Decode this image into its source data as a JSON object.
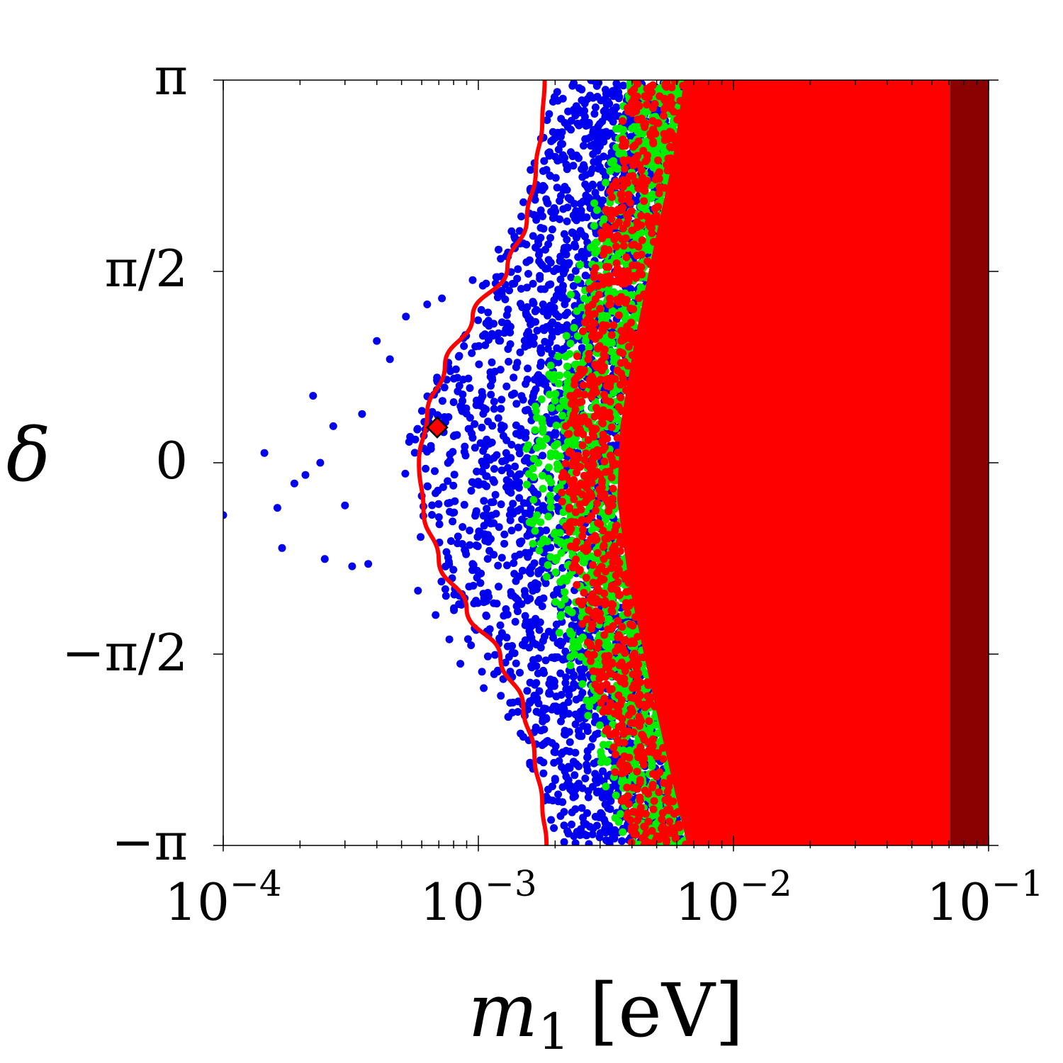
{
  "chart_data": {
    "type": "scatter",
    "x_scale": "log",
    "xlim": [
      0.0001,
      0.1
    ],
    "ylim": [
      -3.14159,
      3.14159
    ],
    "xlabel": {
      "symbol": "m",
      "subscript": "1",
      "unit": "[eV]"
    },
    "ylabel": "δ",
    "x_ticks": [
      {
        "value": 0.0001,
        "base": "10",
        "exponent": "−4"
      },
      {
        "value": 0.001,
        "base": "10",
        "exponent": "−3"
      },
      {
        "value": 0.01,
        "base": "10",
        "exponent": "−2"
      },
      {
        "value": 0.1,
        "base": "10",
        "exponent": "−1"
      }
    ],
    "y_ticks": [
      {
        "value": 3.14159,
        "label": "π"
      },
      {
        "value": 1.5708,
        "label": "π/2"
      },
      {
        "value": 0,
        "label": "0"
      },
      {
        "value": -1.5708,
        "label": "−π/2"
      },
      {
        "value": -3.14159,
        "label": "−π"
      }
    ],
    "colors": {
      "blue_points": "#0000ee",
      "green_points": "#00ee00",
      "red_region": "#ff0000",
      "dark_red_band": "#8b0000",
      "curve": "#ff0000",
      "marker": "#ff0000"
    },
    "dark_red_band": {
      "x_from": 0.071,
      "x_to": 0.1
    },
    "red_region_edge": [
      {
        "delta": 3.14159,
        "m1": 0.0064
      },
      {
        "delta": 2.5,
        "m1": 0.0058
      },
      {
        "delta": 1.8,
        "m1": 0.0049
      },
      {
        "delta": 1.0,
        "m1": 0.0041
      },
      {
        "delta": 0.3,
        "m1": 0.0036
      },
      {
        "delta": -0.3,
        "m1": 0.0035
      },
      {
        "delta": -1.0,
        "m1": 0.0039
      },
      {
        "delta": -1.8,
        "m1": 0.0047
      },
      {
        "delta": -2.5,
        "m1": 0.0056
      },
      {
        "delta": -3.14159,
        "m1": 0.0066
      }
    ],
    "green_band_edge": [
      {
        "delta": 3.14159,
        "m1": 0.0043
      },
      {
        "delta": 2.5,
        "m1": 0.0038
      },
      {
        "delta": 1.8,
        "m1": 0.0031
      },
      {
        "delta": 1.0,
        "m1": 0.0024
      },
      {
        "delta": 0.3,
        "m1": 0.0018
      },
      {
        "delta": -0.3,
        "m1": 0.0017
      },
      {
        "delta": -1.0,
        "m1": 0.0021
      },
      {
        "delta": -1.8,
        "m1": 0.0028
      },
      {
        "delta": -2.5,
        "m1": 0.0036
      },
      {
        "delta": -3.14159,
        "m1": 0.0043
      }
    ],
    "blue_band_edge": [
      {
        "delta": 3.14159,
        "m1": 0.0027
      },
      {
        "delta": 2.5,
        "m1": 0.0021
      },
      {
        "delta": 1.8,
        "m1": 0.0016
      },
      {
        "delta": 1.0,
        "m1": 0.0011
      },
      {
        "delta": 0.3,
        "m1": 0.00068
      },
      {
        "delta": -0.3,
        "m1": 0.00066
      },
      {
        "delta": -1.0,
        "m1": 0.0009
      },
      {
        "delta": -1.8,
        "m1": 0.0014
      },
      {
        "delta": -2.5,
        "m1": 0.0021
      },
      {
        "delta": -3.14159,
        "m1": 0.0027
      }
    ],
    "outlier_points": [
      {
        "m1": 0.0001,
        "delta": -0.43
      },
      {
        "m1": 0.000145,
        "delta": 0.08
      },
      {
        "m1": 0.000163,
        "delta": -0.37
      },
      {
        "m1": 0.00017,
        "delta": -0.7
      },
      {
        "m1": 0.00019,
        "delta": -0.17
      },
      {
        "m1": 0.00021,
        "delta": -0.1
      },
      {
        "m1": 0.000225,
        "delta": 0.55
      },
      {
        "m1": 0.00024,
        "delta": 0.0
      },
      {
        "m1": 0.00025,
        "delta": -0.79
      },
      {
        "m1": 0.00027,
        "delta": 0.3
      },
      {
        "m1": 0.0003,
        "delta": -0.35
      },
      {
        "m1": 0.00032,
        "delta": -0.85
      },
      {
        "m1": 0.00035,
        "delta": 0.4
      },
      {
        "m1": 0.00037,
        "delta": -0.83
      },
      {
        "m1": 0.0004,
        "delta": 1.0
      },
      {
        "m1": 0.00045,
        "delta": 0.85
      },
      {
        "m1": 0.00052,
        "delta": 1.2
      },
      {
        "m1": 0.00058,
        "delta": -1.05
      },
      {
        "m1": 0.00063,
        "delta": 1.3
      },
      {
        "m1": 0.00068,
        "delta": -1.25
      },
      {
        "m1": 0.00072,
        "delta": 1.35
      },
      {
        "m1": 0.00077,
        "delta": -1.45
      },
      {
        "m1": 0.00085,
        "delta": -1.65
      },
      {
        "m1": 0.00095,
        "delta": 1.5
      },
      {
        "m1": 0.00105,
        "delta": -1.85
      },
      {
        "m1": 0.0012,
        "delta": 1.75
      },
      {
        "m1": 0.00135,
        "delta": 1.9
      },
      {
        "m1": 0.0015,
        "delta": -2.25
      },
      {
        "m1": 0.0016,
        "delta": 2.25
      },
      {
        "m1": 0.0018,
        "delta": -2.55
      },
      {
        "m1": 0.0019,
        "delta": 2.55
      },
      {
        "m1": 0.0021,
        "delta": -2.9
      },
      {
        "m1": 0.0024,
        "delta": 2.85
      },
      {
        "m1": 0.0026,
        "delta": -3.05
      }
    ],
    "curve": [
      {
        "delta": 3.14159,
        "m1": 0.00182
      },
      {
        "delta": 2.8,
        "m1": 0.00178
      },
      {
        "delta": 2.4,
        "m1": 0.00168
      },
      {
        "delta": 2.0,
        "m1": 0.00155
      },
      {
        "delta": 1.6,
        "m1": 0.0013
      },
      {
        "delta": 1.2,
        "m1": 0.00095
      },
      {
        "delta": 0.8,
        "m1": 0.00074
      },
      {
        "delta": 0.4,
        "m1": 0.00063
      },
      {
        "delta": 0.0,
        "m1": 0.000585
      },
      {
        "delta": -0.4,
        "m1": 0.00061
      },
      {
        "delta": -0.8,
        "m1": 0.0007
      },
      {
        "delta": -1.2,
        "m1": 0.0009
      },
      {
        "delta": -1.6,
        "m1": 0.00122
      },
      {
        "delta": -2.0,
        "m1": 0.0015
      },
      {
        "delta": -2.4,
        "m1": 0.00166
      },
      {
        "delta": -2.8,
        "m1": 0.00178
      },
      {
        "delta": -3.14159,
        "m1": 0.00185
      }
    ],
    "marker_point": {
      "m1": 0.00069,
      "delta": 0.29
    }
  }
}
